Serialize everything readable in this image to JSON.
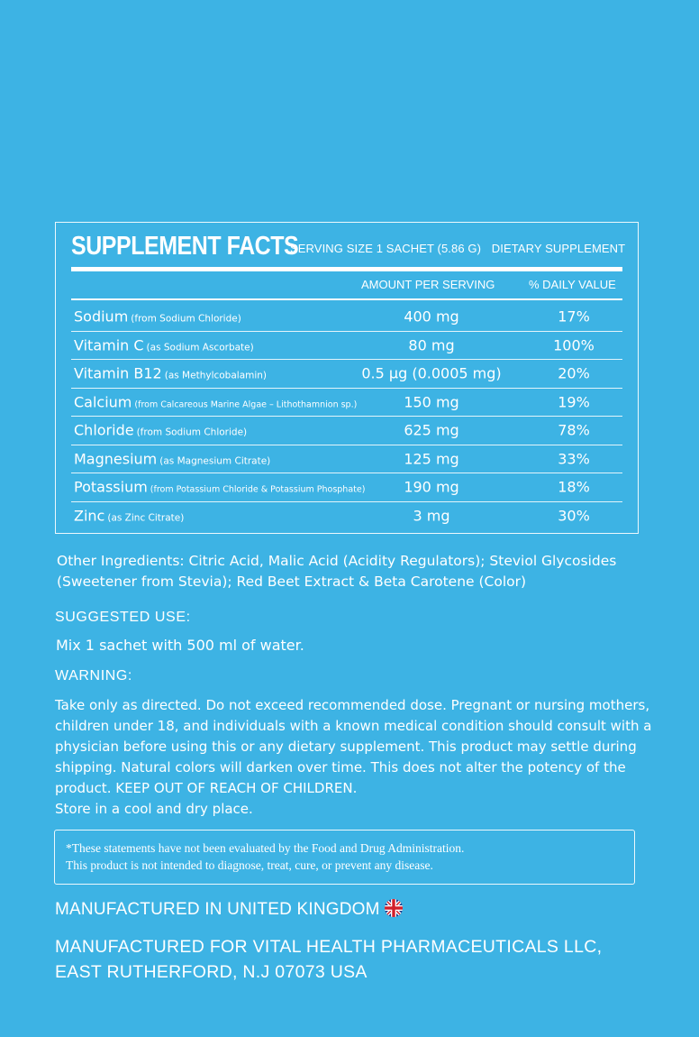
{
  "facts": {
    "title": "SUPPLEMENT FACTS",
    "serving_size": "SERVING SIZE  1 SACHET (5.86 G)",
    "dietary": "DIETARY SUPPLEMENT",
    "col_amount": "AMOUNT PER SERVING",
    "col_dv": "% DAILY VALUE",
    "rows": [
      {
        "name": "Sodium",
        "note": "(from Sodium Chloride)",
        "amount": "400 mg",
        "dv": "17%"
      },
      {
        "name": "Vitamin C",
        "note": "(as Sodium Ascorbate)",
        "amount": "80 mg",
        "dv": "100%"
      },
      {
        "name": "Vitamin B12",
        "note": "(as Methylcobalamin)",
        "amount": "0.5 µg (0.0005 mg)",
        "dv": "20%"
      },
      {
        "name": "Calcium",
        "note": "(from Calcareous Marine Algae – Lithothamnion sp.)",
        "amount": "150 mg",
        "dv": "19%"
      },
      {
        "name": "Chloride",
        "note": "(from Sodium Chloride)",
        "amount": "625 mg",
        "dv": "78%"
      },
      {
        "name": "Magnesium",
        "note": "(as Magnesium Citrate)",
        "amount": "125 mg",
        "dv": "33%"
      },
      {
        "name": "Potassium",
        "note": "(from Potassium Chloride & Potassium Phosphate)",
        "amount": "190 mg",
        "dv": "18%"
      },
      {
        "name": "Zinc",
        "note": "(as Zinc Citrate)",
        "amount": "3 mg",
        "dv": "30%"
      }
    ]
  },
  "other_ingredients": "Other Ingredients: Citric Acid, Malic Acid (Acidity Regulators); Steviol Glycosides (Sweetener from Stevia); Red Beet Extract & Beta Carotene (Color)",
  "suggested_use_label": "SUGGESTED USE:",
  "suggested_use": "Mix 1 sachet with 500 ml of water.",
  "warning_label": "WARNING:",
  "warning_text": "Take only as directed. Do not exceed recommended dose. Pregnant or nursing mothers, children under 18, and individuals with a known medical condition should consult with a physician before using this or any dietary supplement. This product may settle during shipping. Natural colors will darken over time. This does not alter the potency of the product. KEEP OUT OF REACH OF CHILDREN.",
  "storage": "Store in a cool and dry place.",
  "disclaimer_1": "*These statements have not been evaluated by the Food and Drug Administration.",
  "disclaimer_2": "This product is not intended to diagnose, treat, cure, or prevent any disease.",
  "made_in": "MANUFACTURED IN UNITED KINGDOM",
  "flag_icon": "uk-flag-icon",
  "made_for_1": "MANUFACTURED FOR VITAL HEALTH PHARMACEUTICALS LLC,",
  "made_for_2": "EAST RUTHERFORD, N.J 07073 USA",
  "colors": {
    "background": "#3db3e4",
    "text": "#ffffff",
    "flag_blue": "#1f3a8a",
    "flag_red": "#d21f2a"
  }
}
